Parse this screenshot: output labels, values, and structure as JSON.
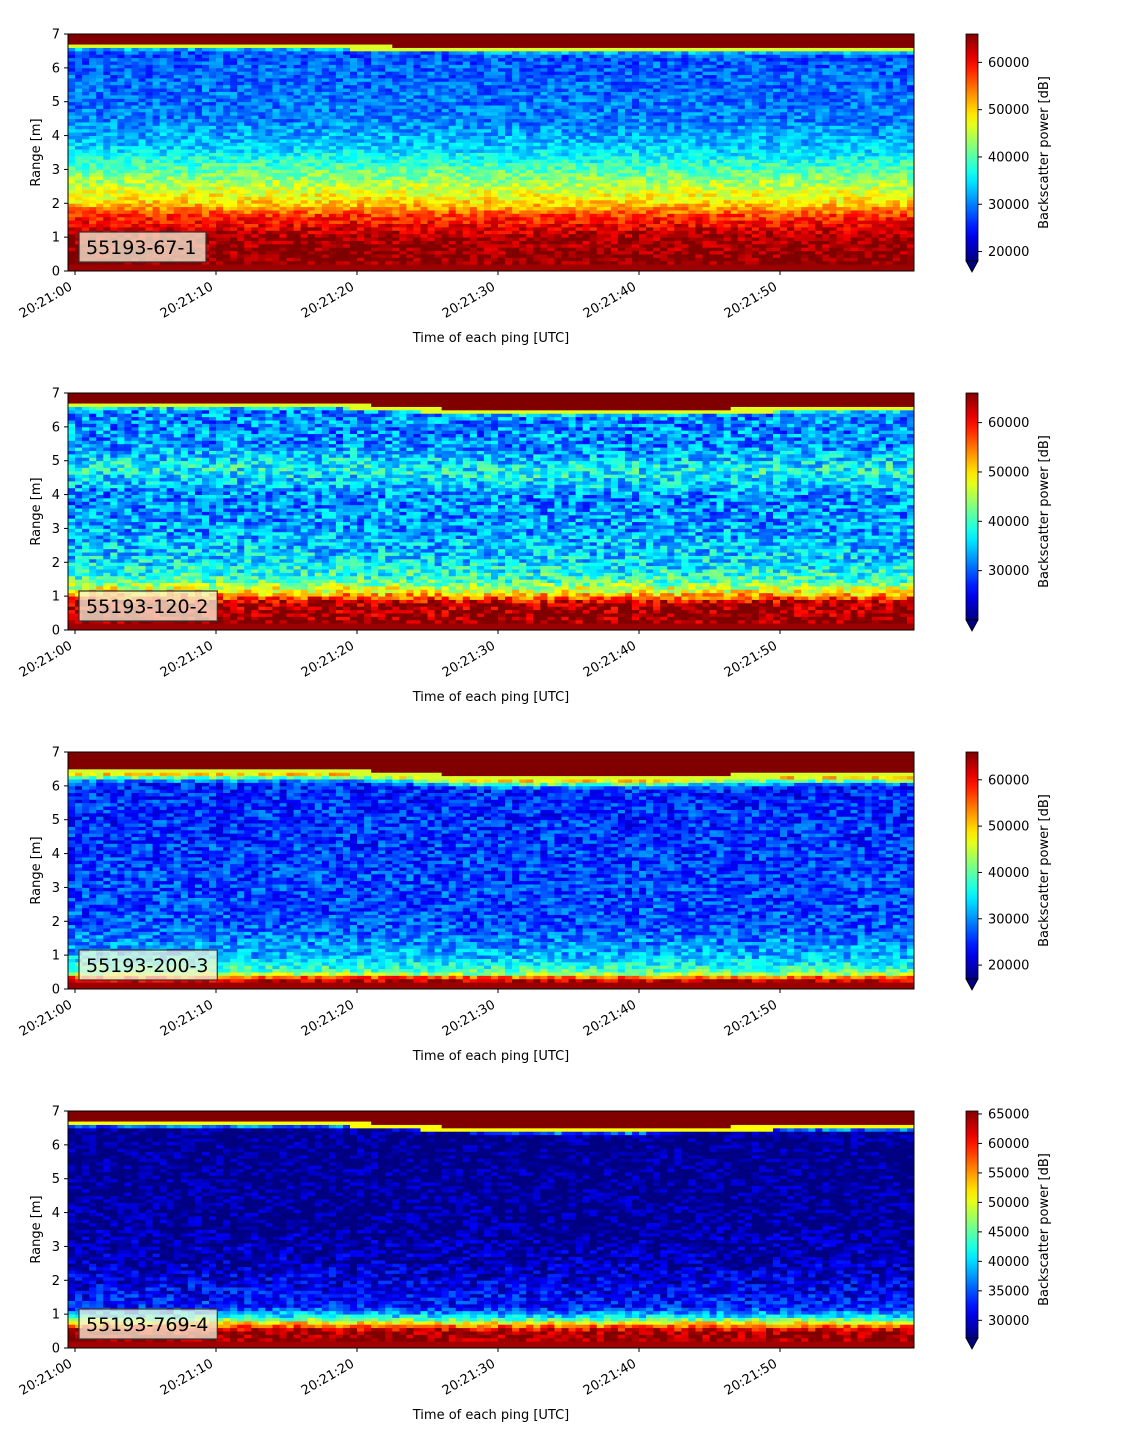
{
  "chart_data": [
    {
      "type": "heatmap",
      "panel_label": "55193-67-1",
      "xlabel": "Time of each ping [UTC]",
      "ylabel": "Range [m]",
      "x_tick_labels": [
        "20:21:00",
        "20:21:10",
        "20:21:20",
        "20:21:30",
        "20:21:40",
        "20:21:50"
      ],
      "y_ticks": [
        0,
        1,
        2,
        3,
        4,
        5,
        6,
        7
      ],
      "ylim": [
        0,
        7
      ],
      "colorbar": {
        "label": "Backscatter power [dB]",
        "vmin": 18000,
        "vmax": 66000,
        "ticks": [
          20000,
          30000,
          40000,
          50000,
          60000
        ],
        "tick_labels": [
          "20000",
          "30000",
          "40000",
          "50000",
          "60000"
        ],
        "extend": "min",
        "colormap": "jet"
      },
      "surface_line_m": [
        6.6,
        6.6,
        6.6,
        6.5,
        6.5,
        6.5,
        6.5
      ],
      "range_profile": [
        {
          "range_m": 0.1,
          "value": 66000
        },
        {
          "range_m": 1.0,
          "value": 64000
        },
        {
          "range_m": 1.6,
          "value": 58000
        },
        {
          "range_m": 2.0,
          "value": 50000
        },
        {
          "range_m": 2.6,
          "value": 44000
        },
        {
          "range_m": 3.2,
          "value": 38000
        },
        {
          "range_m": 3.6,
          "value": 34000
        },
        {
          "range_m": 4.4,
          "value": 30000
        },
        {
          "range_m": 5.5,
          "value": 29000
        },
        {
          "range_m": 6.4,
          "value": 28000
        },
        {
          "range_m": 6.6,
          "value": 45000
        },
        {
          "range_m": 7.0,
          "value": 66000
        }
      ],
      "noise": 4000
    },
    {
      "type": "heatmap",
      "panel_label": "55193-120-2",
      "xlabel": "Time of each ping [UTC]",
      "ylabel": "Range [m]",
      "x_tick_labels": [
        "20:21:00",
        "20:21:10",
        "20:21:20",
        "20:21:30",
        "20:21:40",
        "20:21:50"
      ],
      "y_ticks": [
        0,
        1,
        2,
        3,
        4,
        5,
        6,
        7
      ],
      "ylim": [
        0,
        7
      ],
      "colorbar": {
        "label": "Backscatter power [dB]",
        "vmin": 20000,
        "vmax": 66000,
        "ticks": [
          30000,
          40000,
          50000,
          60000
        ],
        "tick_labels": [
          "30000",
          "40000",
          "50000",
          "60000"
        ],
        "extend": "min",
        "colormap": "jet"
      },
      "surface_line_m": [
        6.6,
        6.6,
        6.6,
        6.4,
        6.4,
        6.5,
        6.5
      ],
      "range_profile": [
        {
          "range_m": 0.1,
          "value": 66000
        },
        {
          "range_m": 0.8,
          "value": 64000
        },
        {
          "range_m": 1.1,
          "value": 50000
        },
        {
          "range_m": 1.5,
          "value": 40000
        },
        {
          "range_m": 2.0,
          "value": 36000
        },
        {
          "range_m": 3.0,
          "value": 33000
        },
        {
          "range_m": 4.0,
          "value": 32000
        },
        {
          "range_m": 4.7,
          "value": 38000
        },
        {
          "range_m": 5.5,
          "value": 32000
        },
        {
          "range_m": 6.4,
          "value": 32000
        },
        {
          "range_m": 6.6,
          "value": 45000
        },
        {
          "range_m": 7.0,
          "value": 66000
        }
      ],
      "noise": 6000
    },
    {
      "type": "heatmap",
      "panel_label": "55193-200-3",
      "xlabel": "Time of each ping [UTC]",
      "ylabel": "Range [m]",
      "x_tick_labels": [
        "20:21:00",
        "20:21:10",
        "20:21:20",
        "20:21:30",
        "20:21:40",
        "20:21:50"
      ],
      "y_ticks": [
        0,
        1,
        2,
        3,
        4,
        5,
        6,
        7
      ],
      "ylim": [
        0,
        7
      ],
      "colorbar": {
        "label": "Backscatter power [dB]",
        "vmin": 17000,
        "vmax": 66000,
        "ticks": [
          20000,
          30000,
          40000,
          50000,
          60000
        ],
        "tick_labels": [
          "20000",
          "30000",
          "40000",
          "50000",
          "60000"
        ],
        "extend": "min",
        "colormap": "jet"
      },
      "surface_line_m": [
        6.4,
        6.4,
        6.4,
        6.2,
        6.2,
        6.3,
        6.3
      ],
      "range_profile": [
        {
          "range_m": 0.1,
          "value": 64000
        },
        {
          "range_m": 0.3,
          "value": 62000
        },
        {
          "range_m": 0.5,
          "value": 40000
        },
        {
          "range_m": 1.0,
          "value": 32000
        },
        {
          "range_m": 2.0,
          "value": 27000
        },
        {
          "range_m": 4.0,
          "value": 26000
        },
        {
          "range_m": 6.2,
          "value": 25000
        },
        {
          "range_m": 6.4,
          "value": 45000
        },
        {
          "range_m": 6.6,
          "value": 62000
        },
        {
          "range_m": 7.0,
          "value": 58000
        }
      ],
      "noise": 5000
    },
    {
      "type": "heatmap",
      "panel_label": "55193-769-4",
      "xlabel": "Time of each ping [UTC]",
      "ylabel": "Range [m]",
      "x_tick_labels": [
        "20:21:00",
        "20:21:10",
        "20:21:20",
        "20:21:30",
        "20:21:40",
        "20:21:50"
      ],
      "y_ticks": [
        0,
        1,
        2,
        3,
        4,
        5,
        6,
        7
      ],
      "ylim": [
        0,
        7
      ],
      "colorbar": {
        "label": "Backscatter power [dB]",
        "vmin": 27000,
        "vmax": 65500,
        "ticks": [
          30000,
          35000,
          40000,
          45000,
          50000,
          55000,
          60000,
          65000
        ],
        "tick_labels": [
          "30000",
          "35000",
          "40000",
          "45000",
          "50000",
          "55000",
          "60000",
          "65000"
        ],
        "extend": "min",
        "colormap": "jet"
      },
      "surface_line_m": [
        6.6,
        6.6,
        6.6,
        6.4,
        6.4,
        6.5,
        6.5
      ],
      "range_profile": [
        {
          "range_m": 0.1,
          "value": 65000
        },
        {
          "range_m": 0.5,
          "value": 64000
        },
        {
          "range_m": 0.7,
          "value": 55000
        },
        {
          "range_m": 0.9,
          "value": 42000
        },
        {
          "range_m": 1.2,
          "value": 33000
        },
        {
          "range_m": 2.5,
          "value": 29000
        },
        {
          "range_m": 4.0,
          "value": 27500
        },
        {
          "range_m": 6.4,
          "value": 27000
        },
        {
          "range_m": 6.6,
          "value": 62000
        },
        {
          "range_m": 7.0,
          "value": 63000
        }
      ],
      "noise": 4000
    }
  ]
}
